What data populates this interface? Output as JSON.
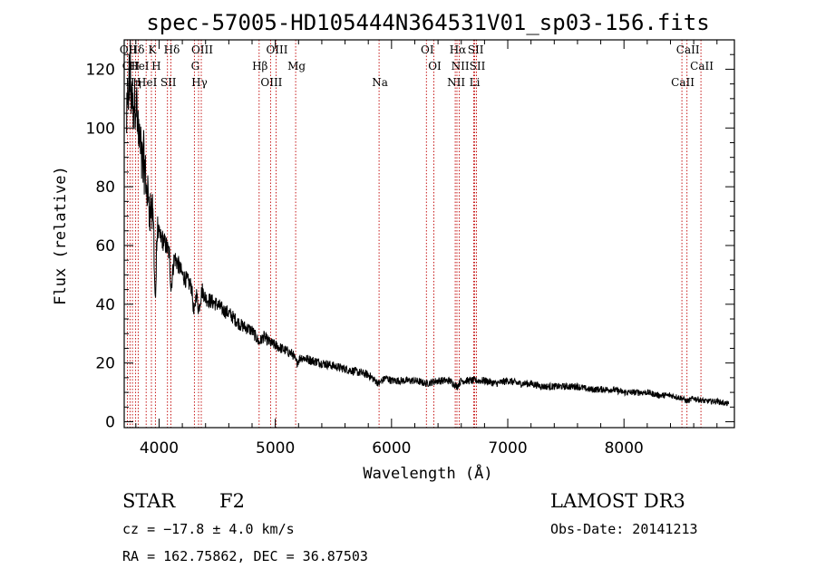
{
  "chart_data": {
    "type": "line",
    "title": "spec-57005-HD105444N364531V01_sp03-156.fits",
    "xlabel": "Wavelength (Å)",
    "ylabel": "Flux (relative)",
    "xlim": [
      3700,
      8950
    ],
    "ylim": [
      -2,
      130
    ],
    "x_ticks": [
      4000,
      5000,
      6000,
      7000,
      8000
    ],
    "y_ticks": [
      0,
      20,
      40,
      60,
      80,
      100,
      120
    ],
    "series": [
      {
        "name": "flux",
        "x": [
          3720,
          3750,
          3775,
          3800,
          3820,
          3845,
          3870,
          3890,
          3910,
          3930,
          3950,
          3968,
          3985,
          4000,
          4030,
          4060,
          4090,
          4102,
          4130,
          4160,
          4200,
          4240,
          4280,
          4300,
          4320,
          4340,
          4370,
          4400,
          4450,
          4500,
          4550,
          4600,
          4650,
          4700,
          4750,
          4800,
          4861,
          4900,
          4950,
          5000,
          5050,
          5100,
          5150,
          5183,
          5220,
          5300,
          5400,
          5500,
          5600,
          5700,
          5800,
          5890,
          5950,
          6000,
          6100,
          6200,
          6300,
          6400,
          6500,
          6563,
          6600,
          6700,
          6800,
          6900,
          7000,
          7100,
          7200,
          7300,
          7400,
          7500,
          7600,
          7700,
          7800,
          7900,
          8000,
          8100,
          8200,
          8300,
          8400,
          8500,
          8542,
          8600,
          8700,
          8800,
          8900
        ],
        "y": [
          100,
          118,
          105,
          112,
          98,
          92,
          88,
          80,
          75,
          72,
          70,
          40,
          66,
          63,
          62,
          60,
          57,
          45,
          56,
          54,
          50,
          48,
          46,
          36,
          44,
          38,
          45,
          42,
          41,
          40,
          38,
          37,
          35,
          33,
          32,
          31,
          27,
          29,
          27,
          26,
          25,
          24,
          23,
          20,
          22,
          21,
          20,
          19,
          18,
          17,
          16,
          13,
          15,
          14,
          14,
          14,
          13,
          14,
          14,
          12,
          14,
          14,
          14,
          13,
          14,
          13,
          13,
          12,
          12,
          12,
          12,
          11,
          11,
          11,
          10,
          10,
          10,
          9,
          9,
          8,
          7,
          8,
          7,
          7,
          6
        ]
      }
    ],
    "line_markers": [
      {
        "wl": 3727,
        "label": "OII"
      },
      {
        "wl": 3750,
        "label": "OII"
      },
      {
        "wl": 3771,
        "label": "Hη"
      },
      {
        "wl": 3798,
        "label": "Hδ"
      },
      {
        "wl": 3820,
        "label": "HeI"
      },
      {
        "wl": 3889,
        "label": "HeI"
      },
      {
        "wl": 3934,
        "label": "K"
      },
      {
        "wl": 3968,
        "label": "H"
      },
      {
        "wl": 4072,
        "label": "SII"
      },
      {
        "wl": 4102,
        "label": "Hδ"
      },
      {
        "wl": 4304,
        "label": "G"
      },
      {
        "wl": 4340,
        "label": "Hγ"
      },
      {
        "wl": 4363,
        "label": "OIII"
      },
      {
        "wl": 4861,
        "label": "Hβ"
      },
      {
        "wl": 4959,
        "label": "OIII"
      },
      {
        "wl": 5007,
        "label": "OIII"
      },
      {
        "wl": 5175,
        "label": "Mg"
      },
      {
        "wl": 5893,
        "label": "Na"
      },
      {
        "wl": 6300,
        "label": "OI"
      },
      {
        "wl": 6364,
        "label": "OI"
      },
      {
        "wl": 6548,
        "label": "NII"
      },
      {
        "wl": 6563,
        "label": "Hα"
      },
      {
        "wl": 6583,
        "label": "NII"
      },
      {
        "wl": 6707,
        "label": "Li"
      },
      {
        "wl": 6716,
        "label": "SII"
      },
      {
        "wl": 6731,
        "label": "SII"
      },
      {
        "wl": 8498,
        "label": "CaII"
      },
      {
        "wl": 8542,
        "label": "CaII"
      },
      {
        "wl": 8662,
        "label": "CaII"
      }
    ]
  },
  "info": {
    "class": "STAR",
    "subclass": "F2",
    "survey": "LAMOST DR3",
    "cz": "cz = −17.8 ± 4.0 km/s",
    "obs_date": "Obs-Date: 20141213",
    "coords": "RA = 162.75862, DEC =  36.87503"
  },
  "colors": {
    "marker": "#c00000",
    "ink": "#000000"
  }
}
